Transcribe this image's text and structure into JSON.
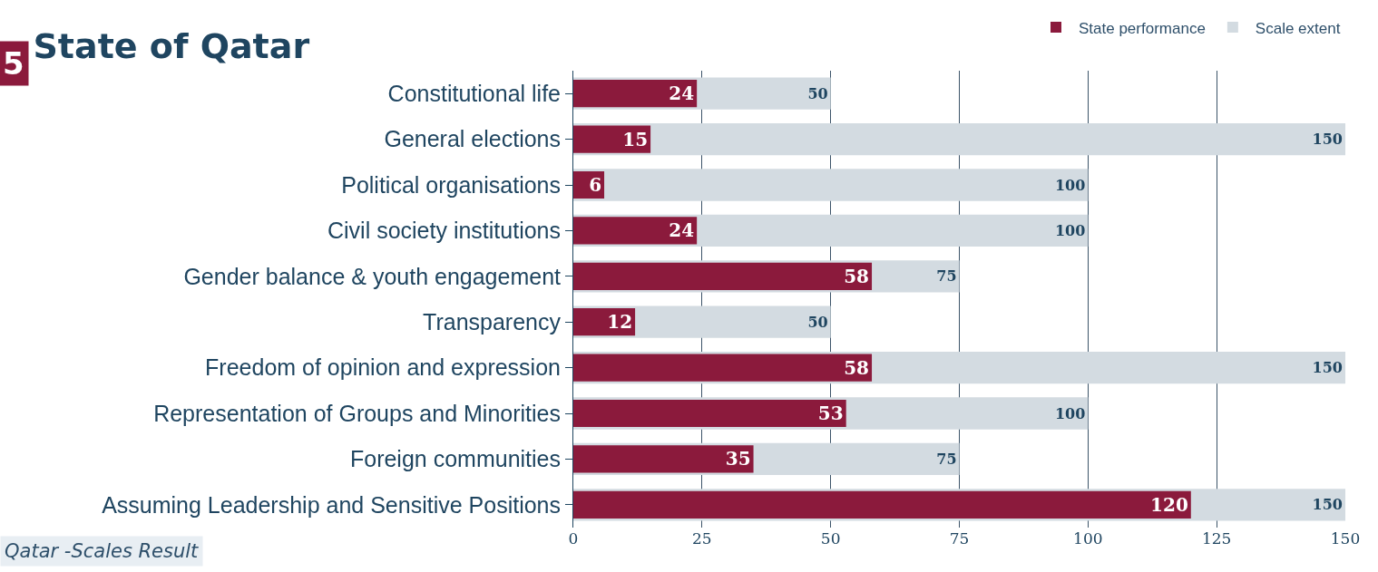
{
  "chart_data": {
    "type": "bar",
    "orientation": "horizontal",
    "title": "State of Qatar",
    "categories": [
      "Constitutional life",
      "General elections",
      "Political organisations",
      "Civil society institutions",
      "Gender balance & youth engagement",
      "Transparency",
      "Freedom of opinion and expression",
      "Representation of Groups and Minorities",
      "Foreign communities",
      "Assuming Leadership and Sensitive Positions"
    ],
    "series": [
      {
        "name": "State performance",
        "color": "#8b1a3c",
        "values": [
          24,
          15,
          6,
          24,
          58,
          12,
          58,
          53,
          35,
          120
        ]
      },
      {
        "name": "Scale extent",
        "color": "#d3dbe1",
        "values": [
          50,
          150,
          100,
          100,
          75,
          50,
          150,
          100,
          75,
          150
        ]
      }
    ],
    "xlim": [
      0,
      150
    ],
    "xticks": [
      0,
      25,
      50,
      75,
      100,
      125,
      150
    ],
    "grid": "x",
    "legend": "top right",
    "data_labels": true,
    "annotations": [
      "5",
      "Qatar -Scales Result"
    ]
  }
}
